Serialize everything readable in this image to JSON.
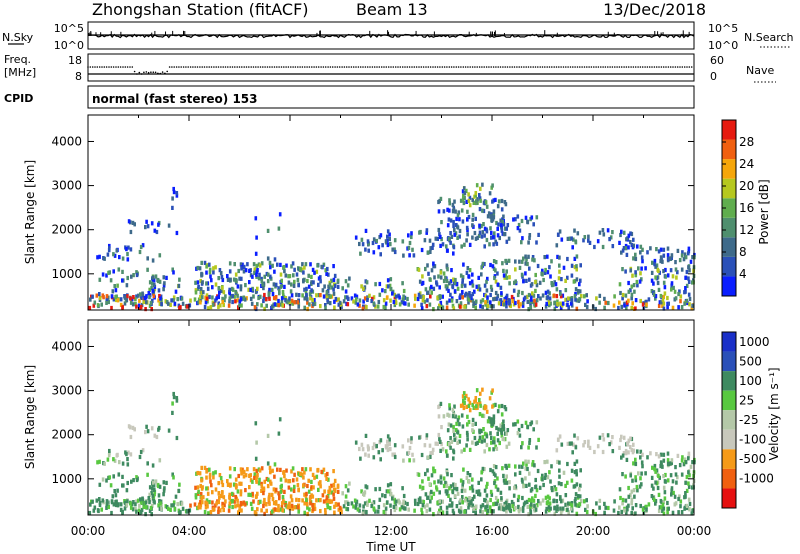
{
  "header": {
    "station": "Zhongshan Station (fitACF)",
    "beam": "Beam 13",
    "date": "13/Dec/2018"
  },
  "panels": {
    "nsky_label": "N.Sky",
    "nsky_ticks": [
      "10^5",
      "10^0"
    ],
    "nsearch_label": "N.Search",
    "nsearch_ticks": [
      "10^5",
      "10^0"
    ],
    "freq_label_line1": "Freq.",
    "freq_label_line2": "[MHz]",
    "freq_ticks": [
      "18",
      "8"
    ],
    "nave_label": "Nave",
    "nave_ticks": [
      "60",
      "0"
    ],
    "cpid_label": "CPID",
    "cpid_text": "normal (fast stereo) 153"
  },
  "colors": {
    "power_scale": [
      "#0a1eff",
      "#2a50b8",
      "#3e6a8a",
      "#4f8f6e",
      "#60ad4e",
      "#b6c81f",
      "#f5a60a",
      "#f06010",
      "#e61a10"
    ],
    "velocity_scale": [
      "#e61010",
      "#f06010",
      "#f59a18",
      "#c8c8bc",
      "#b4c8a8",
      "#58c840",
      "#3e8a60",
      "#2a50b8",
      "#1a30c8"
    ]
  },
  "chart_data": [
    {
      "type": "heatmap",
      "title": "",
      "ylabel": "Slant Range [km]",
      "xlabel": "",
      "x_ticks": [
        "00:00",
        "04:00",
        "08:00",
        "12:00",
        "16:00",
        "20:00",
        "00:00"
      ],
      "y_ticks": [
        "1000",
        "2000",
        "3000",
        "4000"
      ],
      "ylim": [
        180,
        4600
      ],
      "colorbar": {
        "label": "Power [dB]",
        "ticks": [
          "4",
          "8",
          "12",
          "16",
          "20",
          "24",
          "28"
        ],
        "range": [
          0,
          32
        ]
      }
    },
    {
      "type": "heatmap",
      "title": "",
      "ylabel": "Slant Range [km]",
      "xlabel": "Time UT",
      "x_ticks": [
        "00:00",
        "04:00",
        "08:00",
        "12:00",
        "16:00",
        "20:00",
        "00:00"
      ],
      "y_ticks": [
        "1000",
        "2000",
        "3000",
        "4000"
      ],
      "ylim": [
        180,
        4600
      ],
      "colorbar": {
        "label": "Velocity [m s⁻¹]",
        "ticks": [
          "1000",
          "500",
          "100",
          "25",
          "-25",
          "-100",
          "-500",
          "-1000"
        ]
      }
    }
  ]
}
